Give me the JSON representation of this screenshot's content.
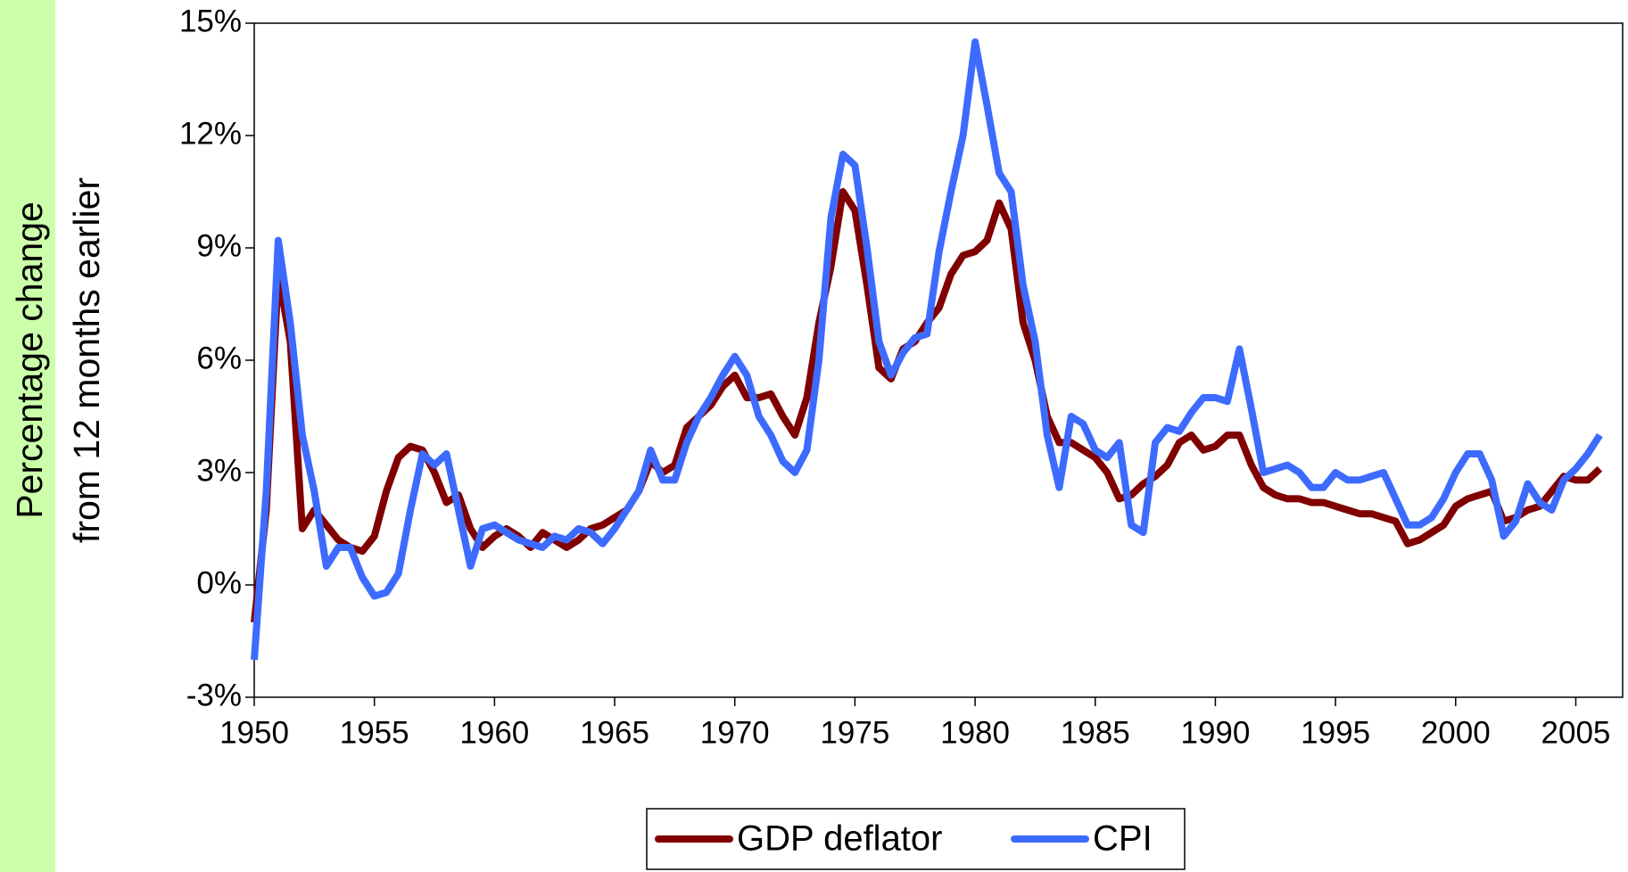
{
  "chart_data": {
    "type": "line",
    "y_label": [
      "Percentage change",
      "from 12 months earlier"
    ],
    "x": [
      1950,
      1950.5,
      1951,
      1951.5,
      1952,
      1952.5,
      1953,
      1953.5,
      1954,
      1954.5,
      1955,
      1955.5,
      1956,
      1956.5,
      1957,
      1957.5,
      1958,
      1958.5,
      1959,
      1959.5,
      1960,
      1960.5,
      1961,
      1961.5,
      1962,
      1962.5,
      1963,
      1963.5,
      1964,
      1964.5,
      1965,
      1965.5,
      1966,
      1966.5,
      1967,
      1967.5,
      1968,
      1968.5,
      1969,
      1969.5,
      1970,
      1970.5,
      1971,
      1971.5,
      1972,
      1972.5,
      1973,
      1973.5,
      1974,
      1974.5,
      1975,
      1975.5,
      1976,
      1976.5,
      1977,
      1977.5,
      1978,
      1978.5,
      1979,
      1979.5,
      1980,
      1980.5,
      1981,
      1981.5,
      1982,
      1982.5,
      1983,
      1983.5,
      1984,
      1984.5,
      1985,
      1985.5,
      1986,
      1986.5,
      1987,
      1987.5,
      1988,
      1988.5,
      1989,
      1989.5,
      1990,
      1990.5,
      1991,
      1991.5,
      1992,
      1992.5,
      1993,
      1993.5,
      1994,
      1994.5,
      1995,
      1995.5,
      1996,
      1996.5,
      1997,
      1997.5,
      1998,
      1998.5,
      1999,
      1999.5,
      2000,
      2000.5,
      2001,
      2001.5,
      2002,
      2002.5,
      2003,
      2003.5,
      2004,
      2004.5,
      2005,
      2005.5,
      2006
    ],
    "series": [
      {
        "name": "GDP deflator",
        "color": "#800000",
        "values": [
          -1.0,
          2.0,
          8.3,
          6.5,
          1.5,
          2.0,
          1.6,
          1.2,
          1.0,
          0.9,
          1.3,
          2.5,
          3.4,
          3.7,
          3.6,
          3.0,
          2.2,
          2.4,
          1.5,
          1.0,
          1.3,
          1.5,
          1.3,
          1.0,
          1.4,
          1.2,
          1.0,
          1.2,
          1.5,
          1.6,
          1.8,
          2.0,
          2.5,
          3.3,
          3.0,
          3.2,
          4.2,
          4.5,
          4.8,
          5.3,
          5.6,
          5.0,
          5.0,
          5.1,
          4.5,
          4.0,
          5.0,
          7.0,
          8.5,
          10.5,
          10.0,
          8.0,
          5.8,
          5.5,
          6.3,
          6.5,
          7.0,
          7.4,
          8.3,
          8.8,
          8.9,
          9.2,
          10.2,
          9.5,
          7.0,
          6.0,
          4.5,
          3.8,
          3.8,
          3.6,
          3.4,
          3.0,
          2.3,
          2.4,
          2.7,
          2.9,
          3.2,
          3.8,
          4.0,
          3.6,
          3.7,
          4.0,
          4.0,
          3.2,
          2.6,
          2.4,
          2.3,
          2.3,
          2.2,
          2.2,
          2.1,
          2.0,
          1.9,
          1.9,
          1.8,
          1.7,
          1.1,
          1.2,
          1.4,
          1.6,
          2.1,
          2.3,
          2.4,
          2.5,
          1.7,
          1.8,
          2.0,
          2.1,
          2.5,
          2.9,
          2.8,
          2.8,
          3.1
        ]
      },
      {
        "name": "CPI",
        "color": "#3d6bff",
        "values": [
          -2.0,
          2.5,
          9.2,
          7.0,
          4.0,
          2.5,
          0.5,
          1.0,
          1.0,
          0.2,
          -0.3,
          -0.2,
          0.3,
          2.0,
          3.5,
          3.2,
          3.5,
          2.0,
          0.5,
          1.5,
          1.6,
          1.4,
          1.2,
          1.1,
          1.0,
          1.3,
          1.2,
          1.5,
          1.4,
          1.1,
          1.5,
          2.0,
          2.5,
          3.6,
          2.8,
          2.8,
          3.8,
          4.5,
          5.0,
          5.6,
          6.1,
          5.6,
          4.5,
          4.0,
          3.3,
          3.0,
          3.6,
          6.0,
          9.8,
          11.5,
          11.2,
          9.0,
          6.5,
          5.6,
          6.2,
          6.6,
          6.7,
          8.9,
          10.5,
          12.0,
          14.5,
          12.8,
          11.0,
          10.5,
          8.0,
          6.5,
          4.0,
          2.6,
          4.5,
          4.3,
          3.6,
          3.4,
          3.8,
          1.6,
          1.4,
          3.8,
          4.2,
          4.1,
          4.6,
          5.0,
          5.0,
          4.9,
          6.3,
          4.7,
          3.0,
          3.1,
          3.2,
          3.0,
          2.6,
          2.6,
          3.0,
          2.8,
          2.8,
          2.9,
          3.0,
          2.3,
          1.6,
          1.6,
          1.8,
          2.3,
          3.0,
          3.5,
          3.5,
          2.8,
          1.3,
          1.7,
          2.7,
          2.2,
          2.0,
          2.8,
          3.1,
          3.5,
          4.0
        ]
      }
    ],
    "xlim": [
      1950,
      2006.95
    ],
    "xticks": [
      1950,
      1955,
      1960,
      1965,
      1970,
      1975,
      1980,
      1985,
      1990,
      1995,
      2000,
      2005
    ],
    "ylim": [
      -3,
      15
    ],
    "yticks": [
      {
        "value": -3,
        "label": "-3%"
      },
      {
        "value": 0,
        "label": "0%"
      },
      {
        "value": 3,
        "label": "3%"
      },
      {
        "value": 6,
        "label": "6%"
      },
      {
        "value": 9,
        "label": "9%"
      },
      {
        "value": 12,
        "label": "12%"
      },
      {
        "value": 15,
        "label": "15%"
      }
    ],
    "legend": "bottom"
  }
}
